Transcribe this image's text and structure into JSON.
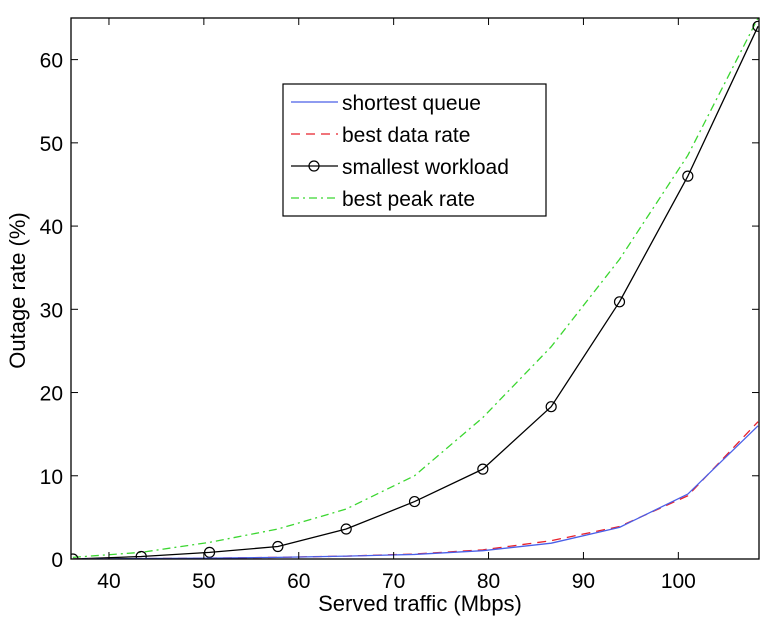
{
  "chart_data": {
    "type": "line",
    "title": "",
    "xlabel": "Served traffic (Mbps)",
    "ylabel": "Outage rate (%)",
    "xlim": [
      36,
      108.5
    ],
    "ylim": [
      0,
      65
    ],
    "xticks": [
      40,
      50,
      60,
      70,
      80,
      90,
      100
    ],
    "yticks": [
      0,
      10,
      20,
      30,
      40,
      50,
      60
    ],
    "grid": false,
    "legend_position": "top-center",
    "series": [
      {
        "name": "shortest queue",
        "color": "#4a5fe8",
        "line_style": "solid",
        "marker": "none",
        "x": [
          36.2,
          43.4,
          50.6,
          57.8,
          65.0,
          72.2,
          79.4,
          86.6,
          93.8,
          101.0,
          108.4
        ],
        "y": [
          0.0,
          0.05,
          0.1,
          0.2,
          0.35,
          0.55,
          1.0,
          1.9,
          3.8,
          7.8,
          16.0
        ]
      },
      {
        "name": "best data rate",
        "color": "#e8202a",
        "line_style": "dashed",
        "marker": "none",
        "x": [
          36.2,
          43.4,
          50.6,
          57.8,
          65.0,
          72.2,
          79.4,
          86.6,
          93.8,
          101.0,
          108.4
        ],
        "y": [
          0.0,
          0.05,
          0.1,
          0.2,
          0.35,
          0.6,
          1.1,
          2.2,
          3.9,
          7.6,
          16.5
        ]
      },
      {
        "name": "smallest workload",
        "color": "#000000",
        "line_style": "solid",
        "marker": "circle",
        "x": [
          36.2,
          43.4,
          50.6,
          57.8,
          65.0,
          72.2,
          79.4,
          86.6,
          93.8,
          101.0,
          108.4
        ],
        "y": [
          0.0,
          0.3,
          0.8,
          1.5,
          3.6,
          6.9,
          10.8,
          18.3,
          30.9,
          46.0,
          64.0
        ]
      },
      {
        "name": "best peak rate",
        "color": "#3bd630",
        "line_style": "dashdot",
        "marker": "none",
        "x": [
          36.2,
          43.4,
          50.6,
          57.8,
          65.0,
          72.2,
          79.4,
          86.6,
          93.8,
          101.0,
          108.4
        ],
        "y": [
          0.2,
          0.8,
          2.0,
          3.6,
          6.0,
          10.0,
          17.0,
          25.5,
          36.0,
          48.5,
          65.0
        ]
      }
    ]
  }
}
